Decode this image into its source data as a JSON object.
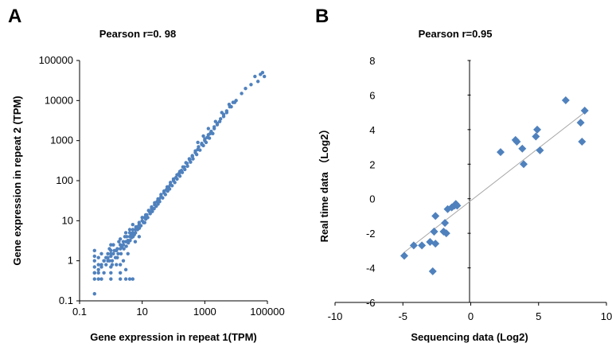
{
  "chart_data": [
    {
      "panel": "A",
      "type": "scatter",
      "title": "Pearson r=0. 98",
      "xlabel": "Gene expression in repeat 1(TPM)",
      "ylabel": "Gene expression in repeat 2 (TPM)",
      "x_scale": "log",
      "y_scale": "log",
      "xlim": [
        0.1,
        100000
      ],
      "ylim": [
        0.1,
        100000
      ],
      "x_ticks": [
        "0.1",
        "10",
        "1000",
        "100000"
      ],
      "y_ticks": [
        "0.1",
        "1",
        "10",
        "100",
        "1000",
        "10000",
        "100000"
      ],
      "color": "#4f81bd",
      "grid": false,
      "series": [
        {
          "x": [
            0.3,
            0.3,
            0.3,
            0.3,
            0.3,
            0.3,
            0.3,
            0.4,
            0.4,
            0.4,
            0.4,
            0.5,
            0.5,
            0.5,
            0.6,
            0.6,
            0.7,
            0.8,
            0.9,
            1.0,
            1.1,
            1.2,
            1.4,
            1.5,
            1.7,
            2.0,
            2.2,
            2.5,
            3.0,
            3.5,
            4.0,
            4.5,
            5.0,
            6.0,
            7.0,
            8.0,
            10,
            12,
            14,
            17,
            20,
            25,
            30,
            35,
            40,
            50,
            60,
            70,
            80,
            100,
            120,
            150,
            180,
            220,
            270,
            330,
            400,
            500,
            600,
            800,
            1000,
            1200,
            1500,
            2000,
            2500,
            3000,
            4000,
            5000,
            7000,
            10000,
            15000,
            20000,
            30000,
            40000,
            50000,
            60000,
            70000,
            80000,
            0.3,
            0.4,
            0.5,
            0.6,
            0.8,
            1.0,
            1.3,
            1.6,
            2.0,
            2.5,
            3.2,
            4.0,
            5.0,
            6.3,
            8.0,
            10,
            13,
            16,
            20,
            25,
            32,
            40,
            50,
            63,
            80,
            100,
            130,
            160,
            200,
            250,
            320,
            400,
            500,
            630,
            800,
            1000,
            1300,
            1600,
            2000,
            2500,
            3200,
            4000,
            5000,
            6300,
            8000,
            1.0,
            1.0,
            1.0,
            1.0,
            1.0,
            2.0,
            2.0,
            2.0,
            2.0,
            3.0,
            3.0,
            3.0,
            4.0,
            4.0,
            5.0,
            5.0,
            1.5,
            2.5,
            3.5,
            6.0,
            8.0,
            12,
            0.7,
            0.8,
            0.9,
            1.2,
            1.8,
            2.8,
            1.1,
            1.6,
            2.1,
            2.6,
            3.1,
            3.6,
            4.1,
            4.6,
            5.1,
            5.6,
            6.1,
            7.1,
            8.1,
            9.1,
            11,
            13,
            15,
            18,
            21,
            24,
            28,
            32,
            36,
            45,
            55,
            65,
            75,
            90,
            110,
            130,
            160,
            190,
            230,
            280,
            350,
            420,
            550,
            700,
            900,
            1100,
            1400,
            1800,
            600,
            900,
            1300,
            2200,
            3500,
            6000,
            9000
          ],
          "y": [
            0.15,
            0.35,
            0.5,
            0.7,
            1.0,
            1.3,
            1.8,
            0.35,
            0.5,
            0.8,
            1.2,
            0.35,
            0.7,
            1.5,
            0.5,
            1.0,
            0.8,
            1.2,
            1.0,
            1.3,
            1.0,
            1.5,
            1.2,
            1.8,
            1.5,
            2.0,
            2.2,
            2.5,
            3.0,
            3.2,
            4.0,
            4.5,
            5.0,
            6.0,
            7.0,
            8.0,
            10,
            12,
            14,
            17,
            20,
            25,
            30,
            35,
            40,
            50,
            60,
            70,
            80,
            100,
            120,
            150,
            180,
            220,
            270,
            330,
            400,
            500,
            600,
            800,
            1000,
            1200,
            1500,
            2000,
            2500,
            3000,
            4000,
            5000,
            7000,
            10000,
            15000,
            20000,
            25000,
            40000,
            30000,
            45000,
            50000,
            40000,
            0.5,
            0.6,
            0.8,
            1.0,
            1.0,
            1.5,
            1.8,
            2.0,
            2.5,
            3.0,
            4.0,
            5.0,
            6.0,
            7.0,
            9.0,
            12,
            14,
            18,
            22,
            28,
            35,
            45,
            55,
            70,
            90,
            110,
            140,
            170,
            220,
            280,
            350,
            420,
            550,
            700,
            850,
            1100,
            1400,
            1700,
            2200,
            2700,
            3500,
            4500,
            5500,
            7000,
            9000,
            0.35,
            0.5,
            0.7,
            1.8,
            2.5,
            0.35,
            0.5,
            0.8,
            3.5,
            0.35,
            0.6,
            5.0,
            0.35,
            6.0,
            0.35,
            8.0,
            0.8,
            1.0,
            1.5,
            3.0,
            4.0,
            9.0,
            1.2,
            1.5,
            2.0,
            2.5,
            3.0,
            4.0,
            0.8,
            1.2,
            1.5,
            2.0,
            2.3,
            2.8,
            3.2,
            3.8,
            4.0,
            4.5,
            5.0,
            6.0,
            6.5,
            7.5,
            9.0,
            11,
            12,
            15,
            17,
            20,
            23,
            26,
            30,
            37,
            45,
            55,
            62,
            75,
            90,
            110,
            130,
            160,
            190,
            230,
            290,
            350,
            450,
            580,
            750,
            900,
            1150,
            1500,
            900,
            1300,
            2000,
            3000,
            5000,
            8000,
            9000
          ]
        }
      ]
    },
    {
      "panel": "B",
      "type": "scatter",
      "title": "Pearson r=0.95",
      "xlabel": "Sequencing data (Log2)",
      "ylabel": "Real time data （Log2）",
      "xlim": [
        -10,
        10
      ],
      "ylim": [
        -6,
        8
      ],
      "x_ticks": [
        "-10",
        "-5",
        "0",
        "5",
        "10"
      ],
      "y_ticks": [
        "-6",
        "-4",
        "-2",
        "0",
        "2",
        "4",
        "6",
        "8"
      ],
      "marker": "diamond",
      "color": "#4f81bd",
      "trendline_color": "#a6a6a6",
      "grid": false,
      "series": [
        {
          "x": [
            -4.9,
            -4.2,
            -3.6,
            -3.0,
            -2.8,
            -2.7,
            -2.7,
            -2.6,
            -2.6,
            -2.0,
            -1.9,
            -1.8,
            -1.7,
            -1.4,
            -1.2,
            -1.1,
            -1.0,
            2.2,
            3.3,
            3.4,
            3.8,
            3.9,
            4.8,
            4.9,
            5.1,
            7.0,
            8.1,
            8.2,
            8.4
          ],
          "y": [
            -3.3,
            -2.7,
            -2.7,
            -2.5,
            -4.2,
            -1.9,
            -1.9,
            -1.0,
            -2.6,
            -1.9,
            -1.4,
            -2.0,
            -0.6,
            -0.5,
            -0.4,
            -0.3,
            -0.4,
            2.7,
            3.4,
            3.3,
            2.9,
            2.0,
            3.6,
            4.0,
            2.8,
            5.7,
            4.4,
            3.3,
            5.1
          ]
        }
      ],
      "trendline": {
        "x": [
          -4.9,
          8.4
        ],
        "y": [
          -3.1,
          5.0
        ]
      }
    }
  ]
}
